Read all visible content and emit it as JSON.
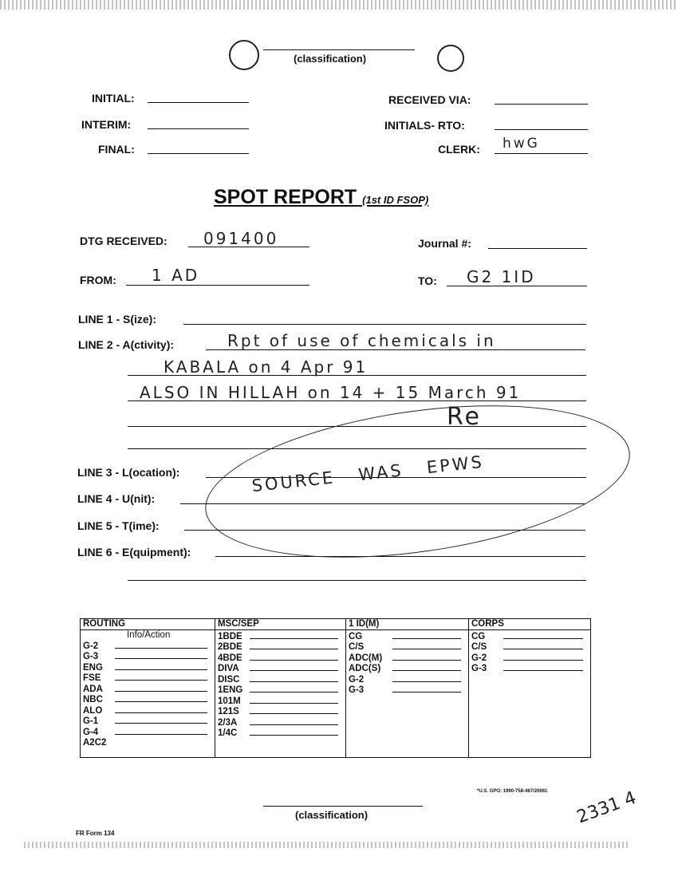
{
  "header": {
    "classification": "(classification)"
  },
  "top_fields": {
    "initial": "INITIAL:",
    "interim": "INTERIM:",
    "final": "FINAL:",
    "received_via": "RECEIVED VIA:",
    "initials_rto": "INITIALS- RTO:",
    "clerk": "CLERK:",
    "clerk_value": "hwG"
  },
  "title": {
    "main": "SPOT REPORT",
    "sub": "(1st ID FSOP)"
  },
  "fields": {
    "dtg_label": "DTG RECEIVED:",
    "dtg_value": "091400",
    "journal_label": "Journal #:",
    "from_label": "FROM:",
    "from_value": "1 AD",
    "to_label": "TO:",
    "to_value": "G2 1ID",
    "line1": "LINE 1 - S(ize):",
    "line2": "LINE 2 - A(ctivity):",
    "line2_values": [
      "Rpt of use of chemicals in",
      "KABALA on 4 Apr 91",
      "ALSO IN HILLAH on 14 + 15 March 91"
    ],
    "line3": "LINE 3 - L(ocation):",
    "line4": "LINE 4 - U(nit):",
    "line5": "LINE 5 - T(ime):",
    "line6": "LINE 6 - E(quipment):",
    "annotation": "SOURCE WAS EPWS",
    "signature": "Re"
  },
  "routing": {
    "headers": [
      "ROUTING",
      "MSC/SEP",
      "1 ID(M)",
      "CORPS"
    ],
    "subheader": "Info/Action",
    "routing": [
      "G-2",
      "G-3",
      "ENG",
      "FSE",
      "ADA",
      "NBC",
      "ALO",
      "G-1",
      "G-4",
      "A2C2"
    ],
    "msc": [
      "1BDE",
      "2BDE",
      "4BDE",
      "DIVA",
      "DISC",
      "1ENG",
      "101M",
      "121S",
      "2/3A",
      "1/4C"
    ],
    "id": [
      "CG",
      "C/S",
      "ADC(M)",
      "ADC(S)",
      "G-2",
      "G-3"
    ],
    "corps": [
      "CG",
      "C/S",
      "G-2",
      "G-3"
    ]
  },
  "footer": {
    "classification": "(classification)",
    "gpo": "*U.S. GPO: 1990-758-487/20661",
    "form": "FR Form 134",
    "page_mark": "2331 4"
  }
}
